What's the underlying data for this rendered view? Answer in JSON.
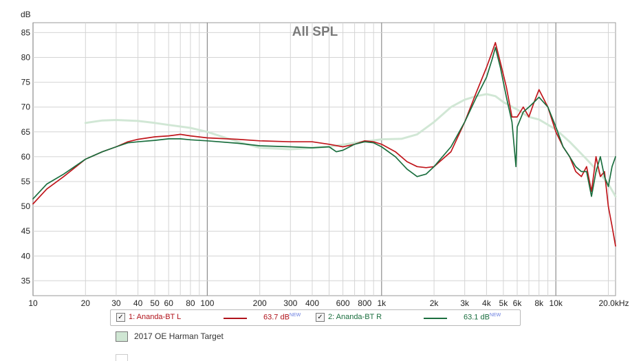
{
  "chart_data": {
    "type": "line",
    "title": "All SPL",
    "ylabel": "dB",
    "xlabel": "",
    "xscale": "log",
    "xlim": [
      10,
      22000
    ],
    "ylim": [
      32,
      87
    ],
    "x_ticks": [
      10,
      20,
      30,
      40,
      50,
      60,
      80,
      100,
      200,
      300,
      400,
      600,
      800,
      1000,
      2000,
      3000,
      4000,
      5000,
      6000,
      8000,
      10000,
      20000
    ],
    "x_tick_labels": [
      "10",
      "20",
      "30",
      "40",
      "50",
      "60",
      "80",
      "100",
      "200",
      "300",
      "400",
      "600",
      "800",
      "1k",
      "2k",
      "3k",
      "4k",
      "5k",
      "6k",
      "8k",
      "10k",
      "20.0kHz"
    ],
    "y_ticks": [
      35,
      40,
      45,
      50,
      55,
      60,
      65,
      70,
      75,
      80,
      85
    ],
    "grid": true,
    "series": [
      {
        "name": "1: Ananda-BT L",
        "color": "#c0151b",
        "x": [
          10,
          12,
          15,
          20,
          25,
          30,
          35,
          40,
          50,
          60,
          70,
          80,
          100,
          150,
          200,
          300,
          400,
          500,
          600,
          700,
          800,
          900,
          1000,
          1200,
          1400,
          1600,
          1800,
          2000,
          2500,
          3000,
          3500,
          4000,
          4300,
          4500,
          4800,
          5200,
          5600,
          6000,
          6500,
          7000,
          7500,
          8000,
          9000,
          10000,
          11000,
          12000,
          13000,
          14000,
          15000,
          16000,
          17000,
          18000,
          19000,
          20000,
          21000,
          22000
        ],
        "y": [
          50.5,
          53.5,
          56,
          59.5,
          61,
          62,
          63,
          63.5,
          64,
          64.2,
          64.5,
          64.2,
          63.8,
          63.5,
          63.2,
          63,
          63,
          62.5,
          62,
          62.5,
          63.2,
          63,
          62.5,
          61,
          59,
          58,
          57.8,
          58,
          61,
          67,
          73,
          78,
          81,
          83,
          79,
          74,
          68,
          68,
          70,
          68,
          71,
          73.5,
          70,
          65,
          62,
          60,
          57,
          56,
          58,
          53,
          60,
          56,
          57,
          50,
          46,
          42
        ]
      },
      {
        "name": "2: Ananda-BT R",
        "color": "#1a6e3e",
        "x": [
          10,
          12,
          15,
          20,
          25,
          30,
          35,
          40,
          50,
          60,
          70,
          80,
          100,
          150,
          200,
          300,
          400,
          500,
          550,
          600,
          700,
          800,
          900,
          1000,
          1200,
          1400,
          1600,
          1800,
          2000,
          2500,
          3000,
          3500,
          4000,
          4300,
          4500,
          4800,
          5200,
          5600,
          5900,
          6000,
          6500,
          7000,
          7500,
          8000,
          9000,
          10000,
          11000,
          12000,
          13000,
          14000,
          15000,
          16000,
          17000,
          18000,
          19000,
          20000,
          21000,
          22000
        ],
        "y": [
          51.5,
          54.5,
          56.5,
          59.5,
          61,
          62,
          62.8,
          63,
          63.3,
          63.6,
          63.6,
          63.4,
          63.2,
          62.7,
          62.2,
          62,
          61.8,
          62,
          61,
          61.3,
          62.5,
          63,
          62.8,
          62,
          60,
          57.5,
          56,
          56.5,
          58,
          62,
          67,
          72,
          76,
          79.5,
          82,
          78,
          72,
          67,
          58,
          66,
          69,
          70,
          71,
          72,
          70,
          66,
          62,
          60,
          58,
          57,
          57,
          52,
          57,
          60,
          56,
          54,
          58,
          60
        ]
      },
      {
        "name": "2017 OE Harman Target",
        "color": "#cfe6d3",
        "x": [
          20,
          25,
          30,
          40,
          50,
          60,
          80,
          100,
          150,
          200,
          300,
          500,
          700,
          1000,
          1300,
          1600,
          2000,
          2500,
          3000,
          3500,
          4000,
          4500,
          5000,
          6000,
          7000,
          8000,
          10000,
          12000,
          15000,
          18000,
          20000,
          22000
        ],
        "y": [
          66.8,
          67.3,
          67.4,
          67.2,
          66.8,
          66.4,
          65.8,
          65,
          63,
          61.8,
          61.5,
          62,
          62.8,
          63.5,
          63.6,
          64.5,
          67,
          70,
          71.5,
          72.2,
          72.6,
          72.2,
          71,
          69.5,
          68,
          67.5,
          65.5,
          63,
          59.5,
          56.5,
          54.5,
          52
        ]
      }
    ],
    "legend": {
      "placement": "bottom",
      "entries": [
        {
          "label": "1: Ananda-BT L",
          "value": "63.7 dB",
          "tag": "NEW",
          "checked": true,
          "color": "#b0121a"
        },
        {
          "label": "2: Ananda-BT R",
          "value": "63.1 dB",
          "tag": "NEW",
          "checked": true,
          "color": "#1a6e3e"
        },
        {
          "label": "2017 OE Harman Target",
          "color": "#cfe6d3"
        }
      ]
    }
  },
  "ui": {
    "check_glyph": "✓"
  }
}
